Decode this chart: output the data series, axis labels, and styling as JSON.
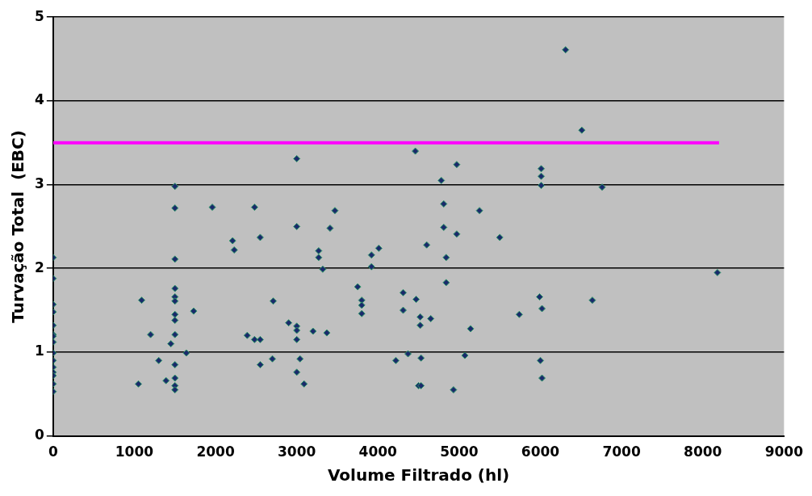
{
  "chart_data": {
    "type": "scatter",
    "xlabel": "Volume Filtrado (hl)",
    "ylabel": "Turvação Total  (EBC)",
    "xlim": [
      0,
      9000
    ],
    "xticks": [
      0,
      1000,
      2000,
      3000,
      4000,
      5000,
      6000,
      7000,
      8000,
      9000
    ],
    "ylim": [
      0,
      5
    ],
    "yticks": [
      0,
      1,
      2,
      3,
      4,
      5
    ],
    "grid": "y",
    "legend": false,
    "marker": "diamond",
    "series": [
      {
        "color": "#1a2a6c",
        "x": [
          0,
          0,
          0,
          0,
          0,
          0,
          0,
          0,
          0,
          0,
          0,
          0,
          0,
          0,
          0,
          1500,
          1500,
          1500,
          1500,
          1500,
          1500,
          1500,
          1500,
          1500,
          1500,
          1500,
          1500,
          1500,
          1960,
          2480,
          2210,
          2230,
          2550,
          1090,
          1200,
          1300,
          1050,
          1390,
          1450,
          1640,
          1730,
          2710,
          2900,
          2390,
          2480,
          2550,
          2700,
          2550,
          3000,
          4460,
          4970,
          4780,
          4810,
          5250,
          3470,
          3000,
          3410,
          4810,
          4970,
          5500,
          4600,
          3270,
          3270,
          3320,
          3920,
          4010,
          3920,
          4840,
          4840,
          3750,
          3800,
          3800,
          3800,
          4310,
          4470,
          4310,
          4520,
          4650,
          4520,
          5140,
          5740,
          3000,
          3000,
          3200,
          3370,
          3000,
          3040,
          3000,
          3090,
          4220,
          4370,
          4530,
          5070,
          4500,
          4530,
          4930,
          6310,
          6510,
          6010,
          6010,
          6010,
          6760,
          8180,
          5990,
          6640,
          6020,
          6000,
          6020
        ],
        "values": [
          2.13,
          1.88,
          1.57,
          1.48,
          1.32,
          1.21,
          1.19,
          1.12,
          0.99,
          0.9,
          0.82,
          0.76,
          0.72,
          0.62,
          0.53,
          2.98,
          2.72,
          2.11,
          1.76,
          1.66,
          1.61,
          1.45,
          1.38,
          1.21,
          0.85,
          0.69,
          0.6,
          0.55,
          2.73,
          2.73,
          2.33,
          2.22,
          2.37,
          1.62,
          1.21,
          0.9,
          0.62,
          0.66,
          1.1,
          0.99,
          1.49,
          1.61,
          1.35,
          1.2,
          1.15,
          1.15,
          0.92,
          0.85,
          3.31,
          3.4,
          3.24,
          3.05,
          2.77,
          2.69,
          2.69,
          2.5,
          2.48,
          2.49,
          2.41,
          2.37,
          2.28,
          2.21,
          2.13,
          1.99,
          2.16,
          2.24,
          2.02,
          2.13,
          1.83,
          1.78,
          1.62,
          1.56,
          1.46,
          1.71,
          1.63,
          1.5,
          1.42,
          1.4,
          1.32,
          1.28,
          1.45,
          1.31,
          1.26,
          1.25,
          1.23,
          1.15,
          0.92,
          0.76,
          0.62,
          0.9,
          0.98,
          0.93,
          0.96,
          0.6,
          0.6,
          0.55,
          4.61,
          3.65,
          3.19,
          3.1,
          2.99,
          2.97,
          1.95,
          1.66,
          1.62,
          1.52,
          0.9,
          0.69
        ]
      },
      {
        "type": "line",
        "color": "#ff00ff",
        "marker": "none",
        "x": [
          0,
          8200
        ],
        "values": [
          3.5,
          3.5
        ]
      }
    ]
  }
}
